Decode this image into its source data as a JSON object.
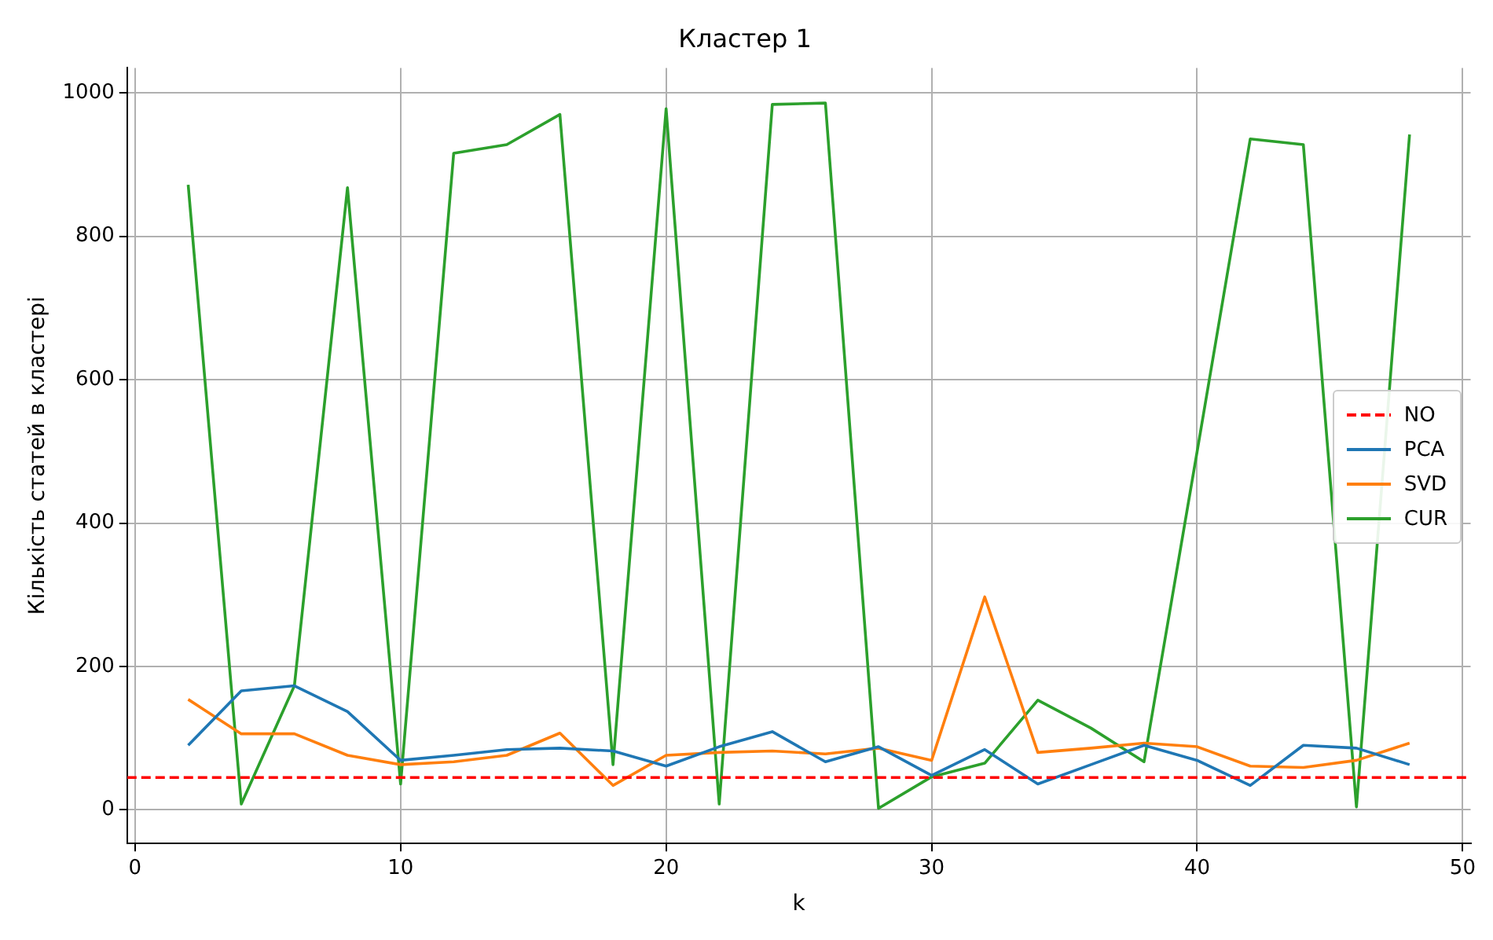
{
  "chart_data": {
    "type": "line",
    "title": "Кластер 1",
    "xlabel": "k",
    "ylabel": "Кількість статей в кластері",
    "x": [
      2,
      4,
      6,
      8,
      10,
      12,
      14,
      16,
      18,
      20,
      22,
      24,
      26,
      28,
      30,
      32,
      34,
      36,
      38,
      40,
      42,
      44,
      46,
      48
    ],
    "series": [
      {
        "name": "PCA",
        "color": "#1f77b4",
        "values": [
          90,
          166,
          173,
          137,
          69,
          76,
          84,
          86,
          82,
          61,
          88,
          109,
          67,
          88,
          48,
          84,
          36,
          63,
          90,
          69,
          34,
          90,
          86,
          63
        ]
      },
      {
        "name": "SVD",
        "color": "#ff7f0e",
        "values": [
          154,
          106,
          106,
          76,
          63,
          67,
          76,
          107,
          34,
          76,
          80,
          82,
          78,
          86,
          69,
          297,
          80,
          86,
          93,
          88,
          61,
          59,
          69,
          93
        ]
      },
      {
        "name": "CUR",
        "color": "#2ca02c",
        "values": [
          872,
          8,
          173,
          868,
          36,
          916,
          928,
          970,
          63,
          978,
          8,
          984,
          986,
          2,
          46,
          65,
          153,
          114,
          67,
          500,
          936,
          928,
          4,
          942
        ]
      }
    ],
    "ref_lines": [
      {
        "axis": "y",
        "value": 45,
        "label": "NO",
        "color": "#ff0000",
        "line_style": "dashed"
      }
    ],
    "xlim": [
      -0.3,
      50.3
    ],
    "xticks": [
      0,
      10,
      20,
      30,
      40,
      50
    ],
    "ylim": [
      -47,
      1035
    ],
    "yticks": [
      0,
      200,
      400,
      600,
      800,
      1000
    ],
    "grid": true,
    "legend": "right",
    "marker": "none",
    "line_style": "solid"
  }
}
